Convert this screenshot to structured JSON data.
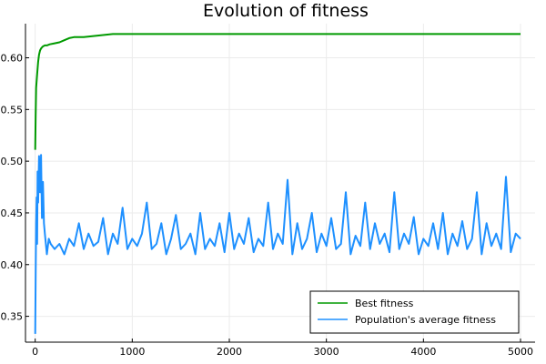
{
  "chart_data": {
    "type": "line",
    "title": "Evolution of fitness",
    "xlabel": "",
    "ylabel": "",
    "xlim": [
      -100,
      5150
    ],
    "ylim": [
      0.325,
      0.633
    ],
    "xticks": [
      0,
      1000,
      2000,
      3000,
      4000,
      5000
    ],
    "xtick_labels": [
      "0",
      "1000",
      "2000",
      "3000",
      "4000",
      "5000"
    ],
    "yticks": [
      0.35,
      0.4,
      0.45,
      0.5,
      0.55,
      0.6
    ],
    "ytick_labels": [
      "0.35",
      "0.40",
      "0.45",
      "0.50",
      "0.55",
      "0.60"
    ],
    "grid": true,
    "legend_position": "bottom-right",
    "series": [
      {
        "name": "Best fitness",
        "color": "#009a00",
        "x": [
          0,
          5,
          10,
          20,
          30,
          40,
          50,
          60,
          70,
          80,
          100,
          120,
          150,
          200,
          250,
          300,
          350,
          400,
          500,
          600,
          700,
          800,
          900,
          1000,
          2000,
          3000,
          4000,
          5000
        ],
        "y": [
          0.511,
          0.545,
          0.571,
          0.584,
          0.596,
          0.603,
          0.607,
          0.609,
          0.61,
          0.611,
          0.612,
          0.612,
          0.613,
          0.614,
          0.615,
          0.617,
          0.619,
          0.62,
          0.62,
          0.621,
          0.622,
          0.623,
          0.623,
          0.623,
          0.623,
          0.623,
          0.623,
          0.623
        ]
      },
      {
        "name": "Population's average fitness",
        "color": "#1e90ff",
        "x": [
          0,
          5,
          10,
          15,
          20,
          25,
          30,
          40,
          50,
          60,
          70,
          80,
          90,
          100,
          120,
          140,
          160,
          200,
          250,
          300,
          350,
          400,
          450,
          500,
          550,
          600,
          650,
          700,
          750,
          800,
          850,
          900,
          950,
          1000,
          1050,
          1100,
          1150,
          1200,
          1250,
          1300,
          1350,
          1400,
          1450,
          1500,
          1550,
          1600,
          1650,
          1700,
          1750,
          1800,
          1850,
          1900,
          1950,
          2000,
          2050,
          2100,
          2150,
          2200,
          2250,
          2300,
          2350,
          2400,
          2450,
          2500,
          2550,
          2600,
          2650,
          2700,
          2750,
          2800,
          2850,
          2900,
          2950,
          3000,
          3050,
          3100,
          3150,
          3200,
          3250,
          3300,
          3350,
          3400,
          3450,
          3500,
          3550,
          3600,
          3650,
          3700,
          3750,
          3800,
          3850,
          3900,
          3950,
          4000,
          4050,
          4100,
          4150,
          4200,
          4250,
          4300,
          4350,
          4400,
          4450,
          4500,
          4550,
          4600,
          4650,
          4700,
          4750,
          4800,
          4850,
          4900,
          4950,
          5000
        ],
        "y": [
          0.333,
          0.39,
          0.44,
          0.465,
          0.42,
          0.49,
          0.46,
          0.505,
          0.47,
          0.506,
          0.445,
          0.48,
          0.44,
          0.43,
          0.41,
          0.425,
          0.42,
          0.415,
          0.42,
          0.41,
          0.425,
          0.418,
          0.44,
          0.415,
          0.43,
          0.418,
          0.422,
          0.445,
          0.41,
          0.43,
          0.42,
          0.455,
          0.415,
          0.425,
          0.418,
          0.43,
          0.46,
          0.415,
          0.42,
          0.44,
          0.41,
          0.425,
          0.448,
          0.415,
          0.42,
          0.43,
          0.41,
          0.45,
          0.415,
          0.425,
          0.418,
          0.44,
          0.412,
          0.45,
          0.415,
          0.43,
          0.42,
          0.445,
          0.412,
          0.425,
          0.418,
          0.46,
          0.415,
          0.43,
          0.42,
          0.482,
          0.41,
          0.44,
          0.415,
          0.425,
          0.45,
          0.412,
          0.43,
          0.418,
          0.445,
          0.415,
          0.42,
          0.47,
          0.41,
          0.428,
          0.418,
          0.46,
          0.415,
          0.44,
          0.42,
          0.43,
          0.412,
          0.47,
          0.415,
          0.43,
          0.42,
          0.446,
          0.41,
          0.425,
          0.418,
          0.44,
          0.415,
          0.45,
          0.41,
          0.43,
          0.418,
          0.442,
          0.415,
          0.425,
          0.47,
          0.41,
          0.44,
          0.418,
          0.43,
          0.415,
          0.485,
          0.412,
          0.43,
          0.425
        ]
      }
    ]
  }
}
